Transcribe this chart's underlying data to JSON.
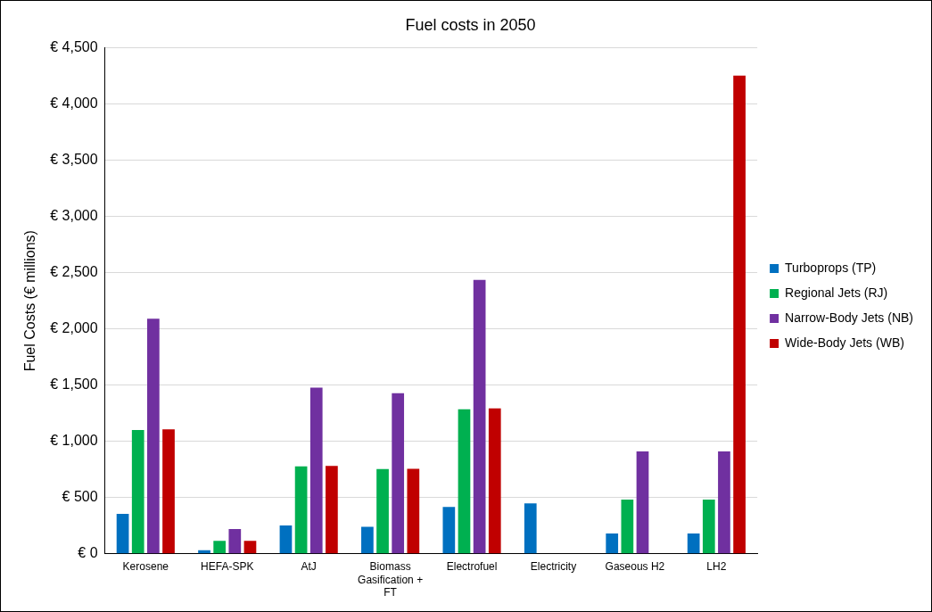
{
  "chart_data": {
    "type": "bar",
    "title": "Fuel costs in 2050",
    "ylabel": "Fuel Costs (€ millions)",
    "categories": [
      "Kerosene",
      "HEFA-SPK",
      "AtJ",
      "Biomass Gasification + FT",
      "Electrofuel",
      "Electricity",
      "Gaseous H2",
      "LH2"
    ],
    "series": [
      {
        "name": "Turboprops (TP)",
        "color": "#0070c0",
        "values": [
          356,
          33,
          253,
          241,
          416,
          449,
          181,
          181
        ]
      },
      {
        "name": "Regional Jets (RJ)",
        "color": "#00b050",
        "values": [
          1101,
          115,
          778,
          754,
          1285,
          null,
          483,
          483
        ]
      },
      {
        "name": "Narrow-Body Jets (NB)",
        "color": "#7030a0",
        "values": [
          2090,
          220,
          1478,
          1429,
          2437,
          null,
          911,
          911
        ]
      },
      {
        "name": "Wide-Body Jets (WB)",
        "color": "#c00000",
        "values": [
          1107,
          115,
          781,
          757,
          1294,
          null,
          null,
          4252
        ]
      }
    ],
    "ylim": [
      0,
      4500
    ],
    "yticks": [
      {
        "value": 0,
        "label": "€ 0"
      },
      {
        "value": 500,
        "label": "€ 500"
      },
      {
        "value": 1000,
        "label": "€ 1,000"
      },
      {
        "value": 1500,
        "label": "€ 1,500"
      },
      {
        "value": 2000,
        "label": "€ 2,000"
      },
      {
        "value": 2500,
        "label": "€ 2,500"
      },
      {
        "value": 3000,
        "label": "€ 3,000"
      },
      {
        "value": 3500,
        "label": "€ 3,500"
      },
      {
        "value": 4000,
        "label": "€ 4,000"
      },
      {
        "value": 4500,
        "label": "€ 4,500"
      }
    ],
    "grid": "y",
    "legend": "right"
  }
}
